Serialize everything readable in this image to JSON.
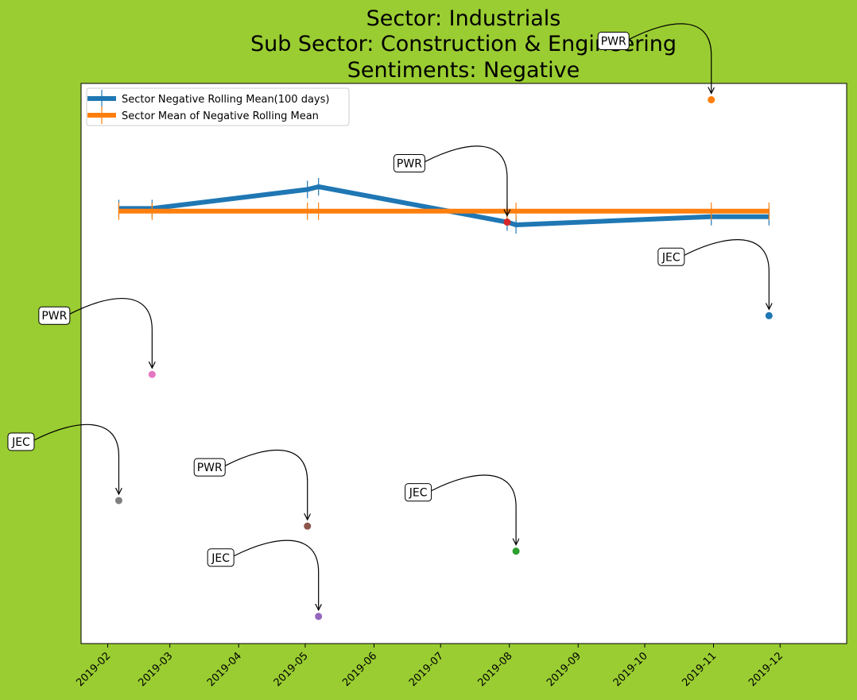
{
  "title_lines": [
    "Sector:  Industrials",
    "Sub Sector:  Construction & Engineering",
    "Sentiments:  Negative"
  ],
  "colors": {
    "background": "#9acd32",
    "rolling_mean": "#1f77b4",
    "mean_of_rolling_mean": "#ff7f0e"
  },
  "chart_data": {
    "type": "line",
    "title": "Sector:  Industrials\nSub Sector:  Construction & Engineering\nSentiments:  Negative",
    "xlabel": "",
    "ylabel": "",
    "x_axis": {
      "kind": "date",
      "range": [
        "2019-01-20",
        "2019-12-31"
      ],
      "ticks": [
        "2019-02-01",
        "2019-03-01",
        "2019-04-01",
        "2019-05-01",
        "2019-06-01",
        "2019-07-01",
        "2019-08-01",
        "2019-09-01",
        "2019-10-01",
        "2019-11-01",
        "2019-12-01"
      ],
      "tick_labels": [
        "2019-02",
        "2019-03",
        "2019-04",
        "2019-05",
        "2019-06",
        "2019-07",
        "2019-08",
        "2019-09",
        "2019-10",
        "2019-11",
        "2019-12"
      ],
      "tick_label_rotation": 45
    },
    "y_axis": {
      "ylim": [
        -0.58,
        0.45
      ],
      "tick_labels_visible": false
    },
    "grid": false,
    "legend_position": "upper-left",
    "series": [
      {
        "name": "Sector Negative Rolling Mean(100 days)",
        "color": "#1f77b4",
        "x": [
          "2019-02-06",
          "2019-02-21",
          "2019-05-02",
          "2019-05-07",
          "2019-07-31",
          "2019-08-04",
          "2019-10-31",
          "2019-11-26"
        ],
        "y": [
          0.22,
          0.22,
          0.255,
          0.26,
          0.195,
          0.19,
          0.205,
          0.205
        ]
      },
      {
        "name": "Sector Mean of Negative Rolling Mean",
        "color": "#ff7f0e",
        "x": [
          "2019-02-06",
          "2019-02-21",
          "2019-05-02",
          "2019-05-07",
          "2019-07-31",
          "2019-08-04",
          "2019-10-31",
          "2019-11-26"
        ],
        "y": [
          0.215,
          0.215,
          0.215,
          0.215,
          0.215,
          0.215,
          0.215,
          0.215
        ]
      }
    ],
    "points": [
      {
        "label": "PWR",
        "x": "2019-02-21",
        "y": -0.085,
        "color": "#e377c2"
      },
      {
        "label": "JEC",
        "x": "2019-02-06",
        "y": -0.317,
        "color": "#7f7f7f"
      },
      {
        "label": "PWR",
        "x": "2019-05-02",
        "y": -0.364,
        "color": "#8c564b"
      },
      {
        "label": "JEC",
        "x": "2019-05-07",
        "y": -0.53,
        "color": "#9467bd"
      },
      {
        "label": "PWR",
        "x": "2019-07-31",
        "y": 0.195,
        "color": "#d62728"
      },
      {
        "label": "JEC",
        "x": "2019-08-04",
        "y": -0.41,
        "color": "#2ca02c"
      },
      {
        "label": "PWR",
        "x": "2019-10-31",
        "y": 0.42,
        "color": "#ff7f0e"
      },
      {
        "label": "JEC",
        "x": "2019-11-26",
        "y": 0.023,
        "color": "#1f77b4"
      }
    ]
  }
}
